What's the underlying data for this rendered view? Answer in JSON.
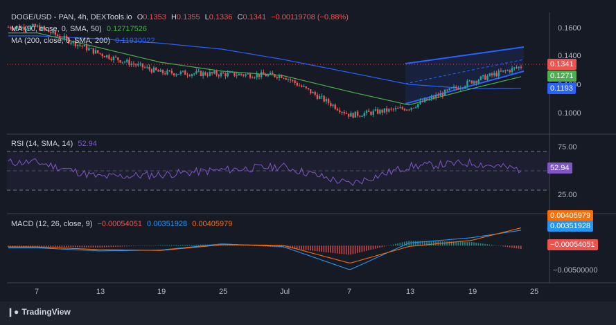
{
  "price_legend": {
    "symbol": "DOGE/USD - PAN, 4h, DEXTools.io",
    "o_label": "O",
    "o": "0.1353",
    "h_label": "H",
    "h": "0.1355",
    "l_label": "L",
    "l": "0.1336",
    "c_label": "C",
    "c": "0.1341",
    "change": "−0.00119708 (−0.88%)",
    "ma50_label": "MA (50, close, 0, SMA, 50)",
    "ma50_value": "0.12717526",
    "ma200_label": "MA (200, close, 0, SMA, 200)",
    "ma200_value": "0.11930022"
  },
  "rsi_legend": {
    "label": "RSI (14, SMA, 14)",
    "value": "52.94"
  },
  "macd_legend": {
    "label": "MACD (12, 26, close, 9)",
    "hist": "−0.00054051",
    "macd": "0.00351928",
    "signal": "0.00405979"
  },
  "badges": {
    "price": "0.1341",
    "ma50": "0.1271",
    "ma200": "0.1193",
    "rsi": "52.94",
    "macd_signal": "0.00405979",
    "macd_line": "0.00351928",
    "macd_hist": "−0.00054051"
  },
  "price_axis": [
    "0.1600",
    "0.1400",
    "0.1200",
    "0.1000"
  ],
  "rsi_axis": [
    "75.00",
    "25.00"
  ],
  "macd_axis": [
    "−0.00500000"
  ],
  "time_axis": [
    "7",
    "13",
    "19",
    "25",
    "Jul",
    "7",
    "13",
    "19",
    "25"
  ],
  "footer": {
    "brand": "TradingView"
  },
  "colors": {
    "up": "#26a69a",
    "down": "#ef5350",
    "ma50": "#4caf50",
    "ma200": "#2962ff",
    "rsi": "#7e57c2",
    "macd": "#2196f3",
    "signal": "#ff6d00",
    "channel": "#2962ff"
  },
  "chart_data": [
    {
      "type": "line",
      "title": "DOGE/USD - PAN, 4h, DEXTools.io",
      "x": [
        "7",
        "13",
        "19",
        "25",
        "Jul",
        "7",
        "13",
        "19",
        "25"
      ],
      "ylim": [
        0.09,
        0.17
      ],
      "series": [
        {
          "name": "close",
          "values": [
            0.161,
            0.143,
            0.13,
            0.129,
            0.128,
            0.101,
            0.106,
            0.124,
            0.1341
          ]
        },
        {
          "name": "MA (50, close, 0, SMA, 50)",
          "values": [
            0.157,
            0.147,
            0.137,
            0.131,
            0.128,
            0.117,
            0.108,
            0.119,
            0.1272
          ]
        },
        {
          "name": "MA (200, close, 0, SMA, 200)",
          "values": [
            0.155,
            0.153,
            0.15,
            0.146,
            0.139,
            0.13,
            0.122,
            0.119,
            0.1193
          ]
        }
      ]
    },
    {
      "type": "line",
      "title": "RSI (14, SMA, 14)",
      "x": [
        "7",
        "13",
        "19",
        "25",
        "Jul",
        "7",
        "13",
        "19",
        "25"
      ],
      "ylim": [
        0,
        100
      ],
      "series": [
        {
          "name": "RSI",
          "values": [
            65,
            40,
            44,
            52,
            58,
            28,
            58,
            64,
            52.94
          ]
        }
      ]
    },
    {
      "type": "bar",
      "title": "MACD (12, 26, close, 9)",
      "x": [
        "7",
        "13",
        "19",
        "25",
        "Jul",
        "7",
        "13",
        "19",
        "25"
      ],
      "ylim": [
        -0.008,
        0.0065
      ],
      "series": [
        {
          "name": "MACD",
          "values": [
            -0.0005,
            -0.0012,
            -0.001,
            0.0004,
            -0.0002,
            -0.0055,
            0.0006,
            0.0018,
            0.00351928
          ]
        },
        {
          "name": "Signal",
          "values": [
            -0.0003,
            -0.0009,
            -0.0011,
            0.0002,
            0.0001,
            -0.004,
            -0.0002,
            0.0012,
            0.00405979
          ]
        }
      ]
    }
  ]
}
